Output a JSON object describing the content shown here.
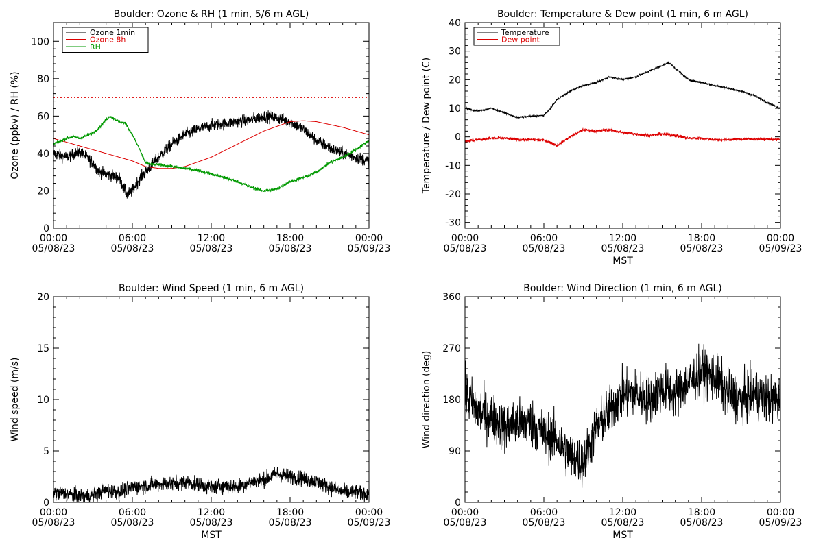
{
  "chart_data": [
    {
      "type": "line",
      "title": "Boulder: Ozone & RH (1 min, 5/6 m AGL)",
      "ylabel": "Ozone (ppbv) / RH (%)",
      "xlabel": "",
      "x_ticks": [
        "00:00",
        "06:00",
        "12:00",
        "18:00",
        "00:00"
      ],
      "x_tick_dates": [
        "05/08/23",
        "05/08/23",
        "05/08/23",
        "05/08/23",
        "05/09/23"
      ],
      "xlim_hours": [
        0,
        24
      ],
      "ylim": [
        0,
        110
      ],
      "y_ticks": [
        0,
        20,
        40,
        60,
        80,
        100
      ],
      "reference_line": {
        "y": 70,
        "style": "dotted",
        "color": "#dd0000"
      },
      "legend_placement": "top-left",
      "series": [
        {
          "name": "Ozone 1min",
          "color": "#000000",
          "noise": 3.0,
          "x": [
            0,
            1,
            2,
            3,
            3.5,
            4,
            4.5,
            5,
            5.3,
            5.6,
            6,
            6.5,
            7,
            7.5,
            8,
            9,
            10,
            11,
            12,
            13,
            14,
            15,
            16,
            17,
            18,
            19,
            20,
            21,
            22,
            23,
            24
          ],
          "y": [
            40,
            38,
            41,
            35,
            30,
            29,
            28,
            27,
            22,
            18,
            20,
            26,
            30,
            34,
            38,
            45,
            50,
            53,
            55,
            56,
            57,
            58,
            60,
            59,
            57,
            53,
            47,
            43,
            40,
            38,
            36
          ]
        },
        {
          "name": "Ozone 8h",
          "color": "#dd0000",
          "noise": 0,
          "x": [
            0,
            2,
            4,
            6,
            7,
            8,
            9,
            10,
            12,
            14,
            16,
            18,
            19,
            20,
            22,
            24
          ],
          "y": [
            48,
            44,
            40,
            36,
            33,
            32,
            32,
            33,
            38,
            45,
            52,
            57,
            57.5,
            57,
            54,
            50
          ]
        },
        {
          "name": "RH",
          "color": "#009900",
          "noise": 0.8,
          "x": [
            0,
            1,
            1.5,
            2,
            3,
            3.5,
            4,
            4.3,
            5,
            5.5,
            6,
            6.5,
            7,
            7.5,
            8,
            9,
            10,
            11,
            12,
            13,
            14,
            15,
            16,
            17,
            18,
            19,
            20,
            21,
            22,
            23,
            24
          ],
          "y": [
            45,
            48,
            49,
            48,
            51,
            54,
            58,
            60,
            57,
            56,
            50,
            43,
            35,
            34,
            34,
            33,
            32,
            31,
            29,
            27,
            25,
            22,
            20,
            21,
            25,
            27,
            30,
            35,
            38,
            42,
            47
          ]
        }
      ]
    },
    {
      "type": "line",
      "title": "Boulder: Temperature & Dew point (1 min, 6 m AGL)",
      "ylabel": "Temperature / Dew point (C)",
      "xlabel": "MST",
      "x_ticks": [
        "00:00",
        "06:00",
        "12:00",
        "18:00",
        "00:00"
      ],
      "x_tick_dates": [
        "05/08/23",
        "05/08/23",
        "05/08/23",
        "05/08/23",
        "05/09/23"
      ],
      "xlim_hours": [
        0,
        24
      ],
      "ylim": [
        -32,
        40
      ],
      "y_ticks": [
        -30,
        -20,
        -10,
        0,
        10,
        20,
        30,
        40
      ],
      "legend_placement": "top-left",
      "series": [
        {
          "name": "Temperature",
          "color": "#000000",
          "noise": 0.3,
          "x": [
            0,
            1,
            2,
            3,
            3.5,
            4,
            5,
            6,
            6.5,
            7,
            8,
            9,
            10,
            11,
            12,
            13,
            14,
            15,
            15.5,
            16,
            17,
            18,
            19,
            20,
            21,
            22,
            23,
            24
          ],
          "y": [
            10,
            9,
            10,
            8.5,
            7.5,
            6.8,
            7.2,
            7.5,
            10,
            13,
            16,
            18,
            19,
            21,
            20,
            21,
            23,
            25,
            26,
            24,
            20,
            19,
            18,
            17,
            16,
            14.5,
            12,
            10
          ]
        },
        {
          "name": "Dew point",
          "color": "#dd0000",
          "noise": 0.5,
          "x": [
            0,
            1,
            2,
            3,
            4,
            5,
            6,
            6.5,
            7,
            7.5,
            8,
            9,
            10,
            11,
            12,
            13,
            14,
            15,
            16,
            17,
            18,
            19,
            20,
            21,
            22,
            23,
            24
          ],
          "y": [
            -1.5,
            -1,
            -0.5,
            -0.5,
            -1,
            -1,
            -1.2,
            -2,
            -3,
            -1.5,
            0,
            2.5,
            2,
            2.5,
            1.5,
            1,
            0.5,
            1,
            0.5,
            -0.5,
            -0.5,
            -1,
            -1,
            -0.8,
            -0.8,
            -0.8,
            -1
          ]
        }
      ]
    },
    {
      "type": "line",
      "title": "Boulder: Wind Speed (1 min, 6 m AGL)",
      "ylabel": "Wind speed (m/s)",
      "xlabel": "MST",
      "x_ticks": [
        "00:00",
        "06:00",
        "12:00",
        "18:00",
        "00:00"
      ],
      "x_tick_dates": [
        "05/08/23",
        "05/08/23",
        "05/08/23",
        "05/08/23",
        "05/09/23"
      ],
      "xlim_hours": [
        0,
        24
      ],
      "ylim": [
        0,
        20
      ],
      "y_ticks": [
        0,
        5,
        10,
        15,
        20
      ],
      "series": [
        {
          "name": "",
          "color": "#000000",
          "noise": 0.7,
          "floor": 0,
          "x": [
            0,
            2,
            3,
            4,
            5,
            6,
            7,
            8,
            9,
            10,
            11,
            12,
            13,
            14,
            15,
            16,
            17,
            18,
            19,
            20,
            21,
            22,
            23,
            24
          ],
          "y": [
            1,
            0.6,
            0.7,
            1.2,
            1.0,
            1.5,
            1.6,
            1.8,
            1.8,
            2.0,
            1.7,
            1.5,
            1.6,
            1.5,
            2.0,
            2.2,
            2.8,
            2.5,
            2.3,
            2.0,
            1.5,
            1.0,
            1.0,
            0.8
          ]
        }
      ]
    },
    {
      "type": "line",
      "title": "Boulder: Wind Direction (1 min, 6 m AGL)",
      "ylabel": "Wind direction (deg)",
      "xlabel": "MST",
      "x_ticks": [
        "00:00",
        "06:00",
        "12:00",
        "18:00",
        "00:00"
      ],
      "x_tick_dates": [
        "05/08/23",
        "05/08/23",
        "05/08/23",
        "05/08/23",
        "05/09/23"
      ],
      "xlim_hours": [
        0,
        24
      ],
      "ylim": [
        0,
        360
      ],
      "y_ticks": [
        0,
        90,
        180,
        270,
        360
      ],
      "series": [
        {
          "name": "",
          "color": "#000000",
          "noise": 40,
          "floor": 0,
          "ceil": 360,
          "x": [
            0,
            1,
            2,
            3,
            4,
            5,
            6,
            7,
            8,
            9,
            10,
            11,
            12,
            13,
            14,
            15,
            16,
            17,
            18,
            19,
            20,
            21,
            22,
            23,
            24
          ],
          "y": [
            190,
            160,
            150,
            130,
            140,
            140,
            120,
            110,
            80,
            70,
            130,
            160,
            190,
            190,
            180,
            200,
            190,
            210,
            230,
            220,
            190,
            180,
            190,
            180,
            180
          ]
        }
      ]
    }
  ]
}
